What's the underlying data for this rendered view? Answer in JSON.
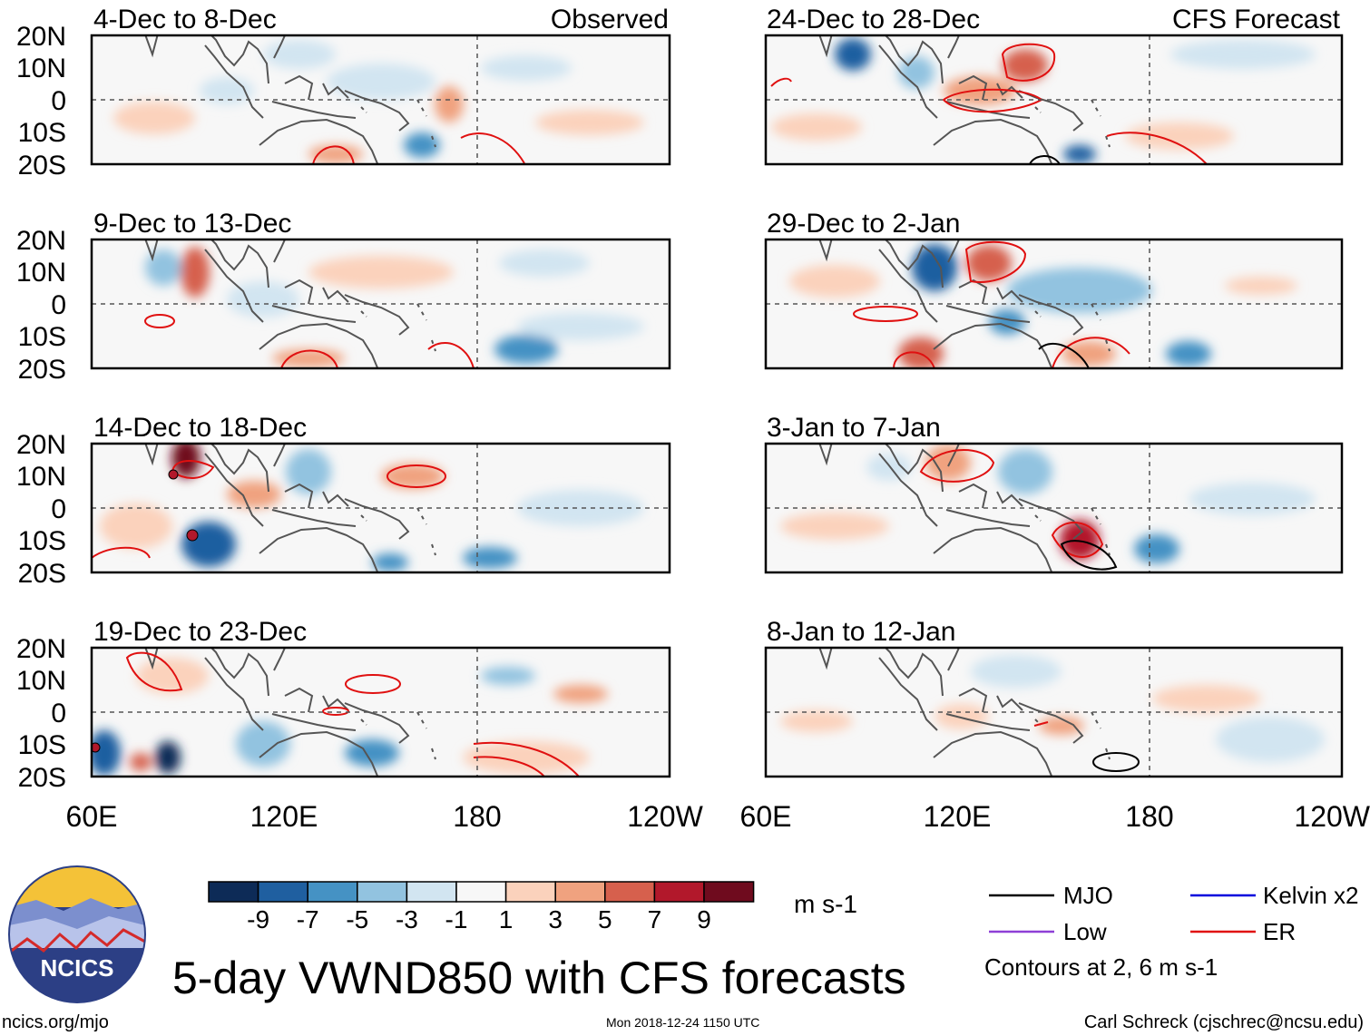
{
  "title": "5-day VWND850 with CFS forecasts",
  "website": "ncics.org/mjo",
  "timestamp": "Mon 2018-12-24 1150 UTC",
  "credit": "Carl Schreck (cjschrec@ncsu.edu)",
  "logo_text": "NCICS",
  "units": "m s-1",
  "column_headers": {
    "left": "Observed",
    "right": "CFS Forecast"
  },
  "y_ticks": [
    "20N",
    "10N",
    "0",
    "10S",
    "20S"
  ],
  "x_ticks": [
    "60E",
    "120E",
    "180",
    "120W"
  ],
  "colorbar": {
    "labels": [
      "-9",
      "-7",
      "-5",
      "-3",
      "-1",
      "1",
      "3",
      "5",
      "7",
      "9"
    ],
    "colors": [
      "#0d2b57",
      "#1f5fa0",
      "#4592c4",
      "#92c3e0",
      "#d2e5f1",
      "#f7f7f7",
      "#fbd2bc",
      "#f0a27f",
      "#d6604d",
      "#b2182b",
      "#6f0b1e"
    ]
  },
  "legend": {
    "items": [
      {
        "label": "MJO",
        "color": "#000000"
      },
      {
        "label": "Kelvin x2",
        "color": "#0000dd"
      },
      {
        "label": "Low",
        "color": "#8e3fd6"
      },
      {
        "label": "ER",
        "color": "#e01010"
      }
    ],
    "note": "Contours at 2, 6 m s-1"
  },
  "panels": [
    {
      "period": "4-Dec to 8-Dec",
      "type": "observed"
    },
    {
      "period": "24-Dec to 28-Dec",
      "type": "forecast"
    },
    {
      "period": "9-Dec to 13-Dec",
      "type": "observed"
    },
    {
      "period": "29-Dec to 2-Jan",
      "type": "forecast"
    },
    {
      "period": "14-Dec to 18-Dec",
      "type": "observed"
    },
    {
      "period": "3-Jan to 7-Jan",
      "type": "forecast"
    },
    {
      "period": "19-Dec to 23-Dec",
      "type": "observed"
    },
    {
      "period": "8-Jan to 12-Jan",
      "type": "forecast"
    }
  ]
}
